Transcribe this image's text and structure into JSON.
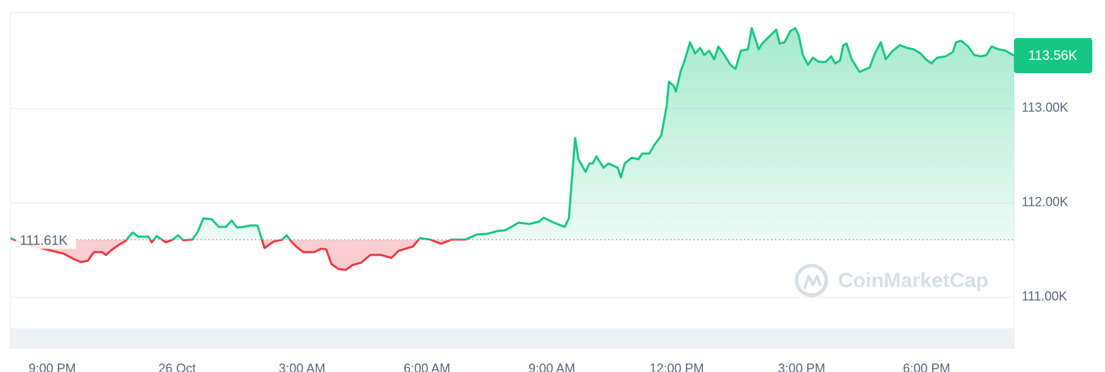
{
  "chart_data": {
    "type": "area-baseline",
    "xlim": [
      -4,
      20.1
    ],
    "xticks": [
      {
        "value": -3,
        "label": "9:00 PM"
      },
      {
        "value": 0,
        "label": "26 Oct"
      },
      {
        "value": 3,
        "label": "3:00 AM"
      },
      {
        "value": 6,
        "label": "6:00 AM"
      },
      {
        "value": 9,
        "label": "9:00 AM"
      },
      {
        "value": 12,
        "label": "12:00 PM"
      },
      {
        "value": 15,
        "label": "3:00 PM"
      },
      {
        "value": 18,
        "label": "6:00 PM"
      }
    ],
    "ylim": [
      110455,
      114015
    ],
    "yticks": [
      {
        "value": 111000,
        "label": "111.00K"
      },
      {
        "value": 112000,
        "label": "112.00K"
      },
      {
        "value": 113000,
        "label": "113.00K"
      }
    ],
    "baseline": {
      "value": 111610,
      "label": "111.61K"
    },
    "last_price": {
      "value": 113560,
      "label": "113.56K"
    },
    "up_color": "#16c784",
    "down_color": "#ea3943",
    "watermark": "CoinMarketCap",
    "x": [
      -4.0,
      -3.75,
      -3.41,
      -3.07,
      -2.73,
      -2.47,
      -2.31,
      -2.14,
      -2.0,
      -1.8,
      -1.71,
      -1.58,
      -1.41,
      -1.24,
      -1.07,
      -0.93,
      -0.69,
      -0.61,
      -0.49,
      -0.27,
      -0.1,
      0.02,
      0.15,
      0.36,
      0.49,
      0.63,
      0.83,
      1.0,
      1.17,
      1.31,
      1.44,
      1.59,
      1.76,
      1.93,
      2.1,
      2.32,
      2.53,
      2.63,
      2.73,
      2.86,
      3.03,
      3.29,
      3.46,
      3.58,
      3.71,
      3.88,
      4.05,
      4.22,
      4.42,
      4.64,
      4.9,
      5.15,
      5.32,
      5.66,
      5.83,
      6.08,
      6.34,
      6.59,
      6.93,
      7.19,
      7.44,
      7.69,
      7.86,
      8.03,
      8.2,
      8.46,
      8.71,
      8.8,
      9.05,
      9.31,
      9.41,
      9.56,
      9.64,
      9.81,
      9.9,
      9.98,
      10.07,
      10.24,
      10.36,
      10.58,
      10.66,
      10.75,
      10.92,
      11.08,
      11.17,
      11.34,
      11.46,
      11.63,
      11.76,
      11.81,
      11.93,
      11.98,
      12.1,
      12.19,
      12.32,
      12.44,
      12.56,
      12.66,
      12.78,
      12.9,
      13.0,
      13.12,
      13.29,
      13.41,
      13.54,
      13.71,
      13.8,
      13.97,
      14.05,
      14.22,
      14.39,
      14.47,
      14.59,
      14.73,
      14.85,
      14.93,
      15.03,
      15.15,
      15.27,
      15.41,
      15.58,
      15.71,
      15.8,
      15.92,
      16.0,
      16.08,
      16.2,
      16.39,
      16.63,
      16.76,
      16.9,
      17.02,
      17.19,
      17.36,
      17.53,
      17.69,
      17.86,
      17.98,
      18.12,
      18.25,
      18.46,
      18.63,
      18.71,
      18.83,
      19.0,
      19.14,
      19.31,
      19.44,
      19.56,
      19.73,
      19.9,
      20.1
    ],
    "values": [
      111627,
      111575,
      111537,
      111500,
      111463,
      111403,
      111373,
      111388,
      111478,
      111478,
      111448,
      111500,
      111552,
      111597,
      111687,
      111642,
      111642,
      111582,
      111649,
      111582,
      111612,
      111657,
      111604,
      111612,
      111687,
      111836,
      111828,
      111746,
      111746,
      111813,
      111739,
      111746,
      111761,
      111761,
      111522,
      111590,
      111612,
      111657,
      111597,
      111537,
      111478,
      111478,
      111515,
      111507,
      111351,
      111299,
      111291,
      111343,
      111366,
      111448,
      111448,
      111418,
      111493,
      111537,
      111627,
      111612,
      111567,
      111612,
      111612,
      111664,
      111672,
      111702,
      111709,
      111746,
      111791,
      111776,
      111806,
      111843,
      111791,
      111746,
      111836,
      112687,
      112463,
      112328,
      112418,
      112418,
      112493,
      112373,
      112418,
      112373,
      112269,
      112418,
      112478,
      112463,
      112522,
      112522,
      112612,
      112716,
      113030,
      113284,
      113239,
      113179,
      113403,
      113507,
      113702,
      113582,
      113642,
      113567,
      113612,
      113522,
      113657,
      113582,
      113463,
      113418,
      113612,
      113627,
      113851,
      113627,
      113687,
      113761,
      113836,
      113687,
      113702,
      113821,
      113851,
      113776,
      113567,
      113463,
      113537,
      113493,
      113493,
      113552,
      113478,
      113507,
      113672,
      113687,
      113522,
      113388,
      113433,
      113582,
      113702,
      113522,
      113612,
      113672,
      113642,
      113627,
      113582,
      113522,
      113478,
      113537,
      113552,
      113597,
      113702,
      113717,
      113657,
      113567,
      113552,
      113567,
      113657,
      113627,
      113612,
      113560
    ]
  }
}
